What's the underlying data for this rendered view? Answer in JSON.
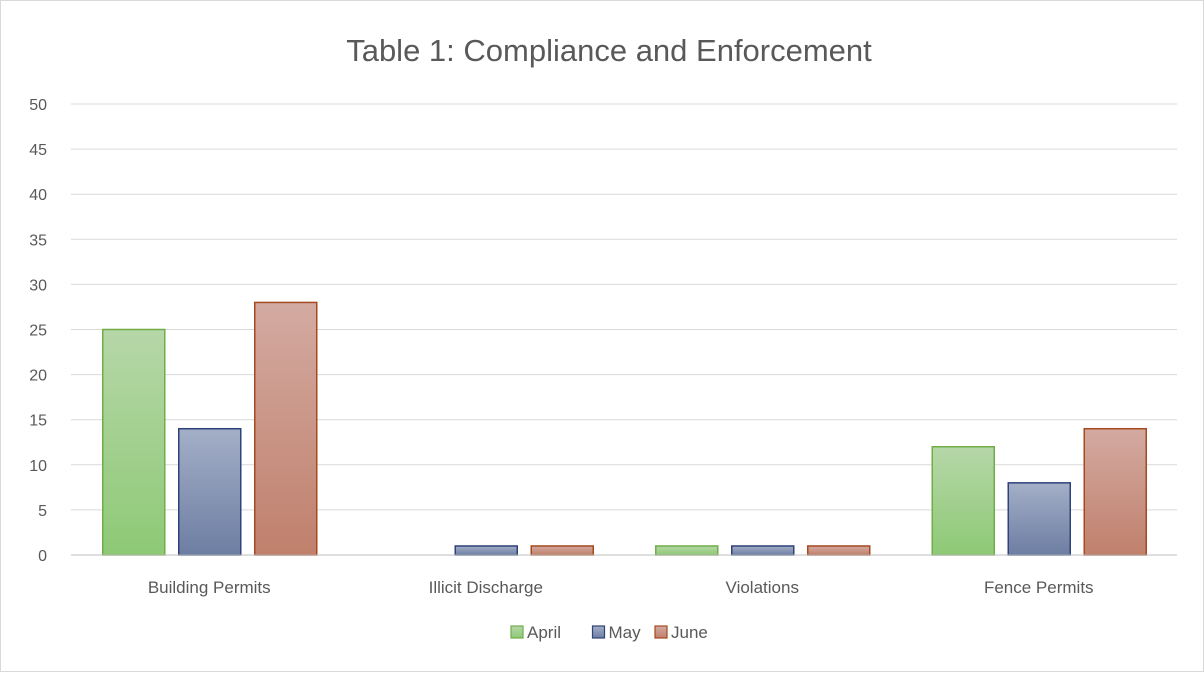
{
  "chart_data": {
    "type": "bar",
    "title": "Table 1: Compliance and Enforcement",
    "categories": [
      "Building Permits",
      "Illicit Discharge",
      "Violations",
      "Fence Permits"
    ],
    "series": [
      {
        "name": "April",
        "values": [
          25,
          0,
          1,
          12
        ],
        "fill_top": "#b6d7a8",
        "fill_bottom": "#8ec976",
        "stroke": "#70ad47"
      },
      {
        "name": "May",
        "values": [
          14,
          1,
          1,
          8
        ],
        "fill_top": "#a4afc7",
        "fill_bottom": "#6d7ea3",
        "stroke": "#2f4279"
      },
      {
        "name": "June",
        "values": [
          28,
          1,
          1,
          14
        ],
        "fill_top": "#d3aaa1",
        "fill_bottom": "#c0806c",
        "stroke": "#a5491e"
      }
    ],
    "ylim": [
      0,
      50
    ],
    "yticks": [
      0,
      5,
      10,
      15,
      20,
      25,
      30,
      35,
      40,
      45,
      50
    ],
    "grid": true,
    "legend": "bottom"
  }
}
